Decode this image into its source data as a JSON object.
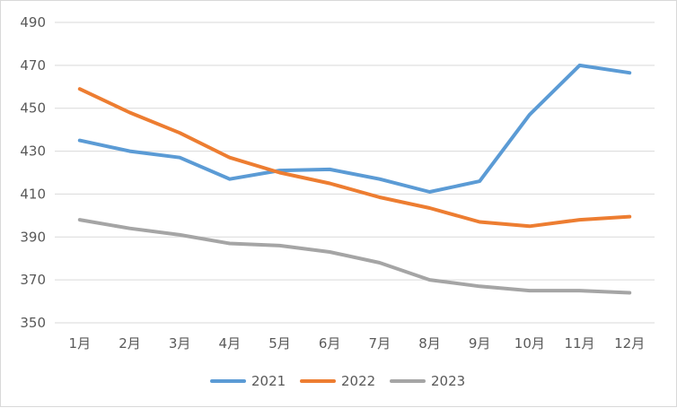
{
  "chart_data": {
    "type": "line",
    "title": "",
    "xlabel": "",
    "ylabel": "",
    "categories": [
      "1月",
      "2月",
      "3月",
      "4月",
      "5月",
      "6月",
      "7月",
      "8月",
      "9月",
      "10月",
      "11月",
      "12月"
    ],
    "ylim": [
      350,
      490
    ],
    "yticks": [
      350,
      370,
      390,
      410,
      430,
      450,
      470,
      490
    ],
    "grid": "horizontal",
    "legend": "bottom-center",
    "series": [
      {
        "name": "2021",
        "color": "#5b9bd5",
        "values": [
          435,
          430,
          427,
          417,
          421,
          421.5,
          417,
          411,
          416,
          447,
          470,
          466.5
        ]
      },
      {
        "name": "2022",
        "color": "#ed7d31",
        "values": [
          459,
          448,
          438.5,
          427,
          420,
          415,
          408.5,
          403.5,
          397,
          395,
          398,
          399.5
        ]
      },
      {
        "name": "2023",
        "color": "#a5a5a5",
        "values": [
          398,
          394,
          391,
          387,
          386,
          383,
          378,
          370,
          367,
          365,
          365,
          364
        ]
      }
    ]
  }
}
